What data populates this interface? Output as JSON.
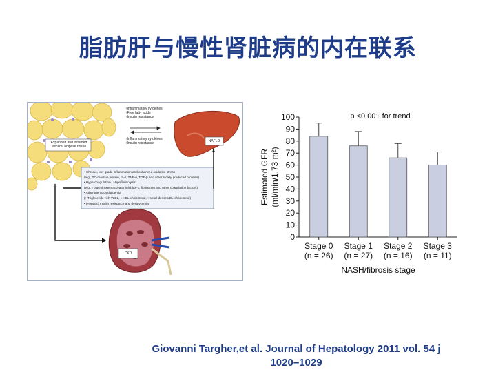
{
  "slide": {
    "title": "脂肪肝与慢性肾脏病的内在联系",
    "citation_line1": "Giovanni Targher,et al. Journal of Hepatology 2011 vol. 54 j",
    "citation_line2": "1020–1029"
  },
  "diagram": {
    "adipose_label": "Expanded and inflamed visceral adipose tissue",
    "nafld_label": "NAFLD",
    "ckd_label": "CKD",
    "top_list": [
      "↑Inflammatory cytokines",
      "↑Free fatty acids",
      "↑Insulin resistance"
    ],
    "mid_list": [
      "↑Inflammatory cytokines",
      "↑Insulin resistance"
    ],
    "mechanisms": [
      "• Chronic, low-grade inflammation and enhanced oxidative stress",
      "  (e.g., TC-reactive protein, IL-6, TNF-α, TGF-β and other locally produced proteins)",
      "• Hypercoagulation / Hypofibrinolysis",
      "  (e.g., ↑plasminogen activator inhibitor-1, fibrinogen and other coagulation factors)",
      "• Atherogenic dyslipidemia",
      "  (↑ Triglyceride-rich VLDL, ↓ HDL-cholesterol, ↑ small dense LDL-cholesterol)",
      "• (Hepatic) Insulin resistance and dysglycemia"
    ]
  },
  "chart_data": {
    "type": "bar",
    "title": "p <0.001 for trend",
    "categories": [
      "Stage 0",
      "Stage 1",
      "Stage 2",
      "Stage 3"
    ],
    "category_sublabels": [
      "(n = 26)",
      "(n = 27)",
      "(n = 16)",
      "(n = 11)"
    ],
    "values": [
      84,
      76,
      66,
      60
    ],
    "error_upper": [
      95,
      88,
      78,
      71
    ],
    "xlabel": "NASH/fibrosis stage",
    "ylabel_line1": "Estimated GFR",
    "ylabel_line2": "(ml/min/1.73 m²)",
    "yticks": [
      "0",
      "10",
      "20",
      "30",
      "40",
      "50",
      "60",
      "70",
      "80",
      "90",
      "100"
    ],
    "ylim": [
      0,
      100
    ],
    "bar_color": "#c9cfe0"
  }
}
